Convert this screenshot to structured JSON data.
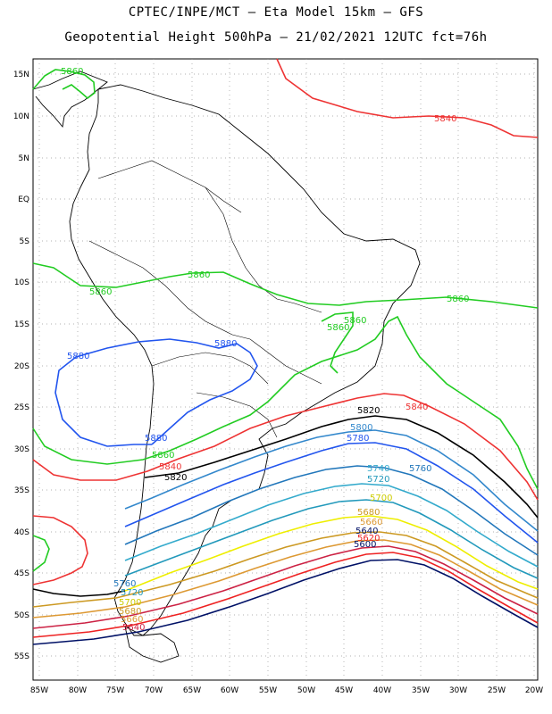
{
  "title_line1": "CPTEC/INPE/MCT –  Eta Model 15km – GFS",
  "title_line2": "Geopotential Height 500hPa – 21/02/2021 12UTC fct=76h",
  "lat_labels": [
    "15N",
    "10N",
    "5N",
    "EQ",
    "5S",
    "10S",
    "15S",
    "20S",
    "25S",
    "30S",
    "35S",
    "40S",
    "45S",
    "50S",
    "55S"
  ],
  "lon_labels": [
    "85W",
    "80W",
    "75W",
    "70W",
    "65W",
    "60W",
    "55W",
    "50W",
    "45W",
    "40W",
    "35W",
    "30W",
    "25W",
    "20W"
  ],
  "colors": {
    "c5880": "#2255ee",
    "c5860": "#22cc22",
    "c5840": "#ee3333",
    "c5820": "#000000",
    "c5800": "#3388cc",
    "c5780": "#1166aa",
    "c5760": "#2277bb",
    "c5740": "#33aacc",
    "c5720": "#2299bb",
    "c5700": "#eeee00",
    "c5680": "#cc9922",
    "c5660": "#dd9933",
    "c5640": "#cc2244",
    "c5620": "#ee2222",
    "c5600": "#001166"
  },
  "contour_labels": [
    {
      "id": "a",
      "text": "5860"
    },
    {
      "id": "b",
      "text": "5840"
    },
    {
      "id": "c",
      "text": "5860"
    },
    {
      "id": "d",
      "text": "5860"
    },
    {
      "id": "e",
      "text": "5860"
    },
    {
      "id": "f",
      "text": "5860"
    },
    {
      "id": "g",
      "text": "5860"
    },
    {
      "id": "h",
      "text": "5880"
    },
    {
      "id": "i",
      "text": "5880"
    },
    {
      "id": "j",
      "text": "5880"
    },
    {
      "id": "k",
      "text": "5820"
    },
    {
      "id": "l",
      "text": "5840"
    },
    {
      "id": "m",
      "text": "5800"
    },
    {
      "id": "n",
      "text": "5780"
    },
    {
      "id": "o",
      "text": "5860"
    },
    {
      "id": "p",
      "text": "5840"
    },
    {
      "id": "q",
      "text": "5820"
    },
    {
      "id": "r",
      "text": "5740"
    },
    {
      "id": "s",
      "text": "5760"
    },
    {
      "id": "t",
      "text": "5720"
    },
    {
      "id": "u",
      "text": "5700"
    },
    {
      "id": "v",
      "text": "5680"
    },
    {
      "id": "w",
      "text": "5660"
    },
    {
      "id": "x",
      "text": "5640"
    },
    {
      "id": "y",
      "text": "5620"
    },
    {
      "id": "z",
      "text": "5600"
    },
    {
      "id": "aa",
      "text": "5760"
    },
    {
      "id": "ab",
      "text": "5720"
    },
    {
      "id": "ac",
      "text": "5700"
    },
    {
      "id": "ad",
      "text": "5680"
    },
    {
      "id": "ae",
      "text": "5660"
    },
    {
      "id": "af",
      "text": "5640"
    }
  ]
}
